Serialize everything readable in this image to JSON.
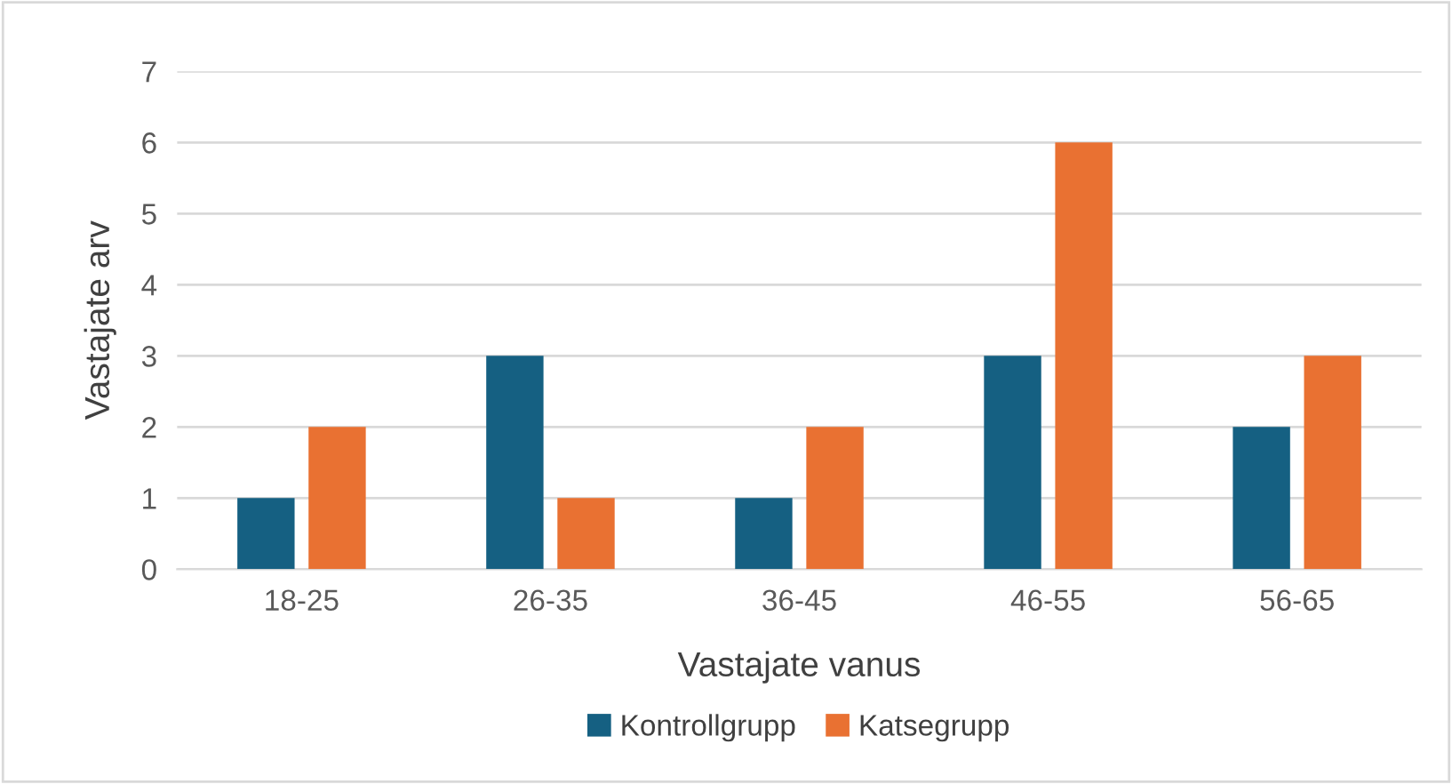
{
  "chart_data": {
    "type": "bar",
    "xlabel": "Vastajate vanus",
    "ylabel": "Vastajate arv",
    "categories": [
      "18-25",
      "26-35",
      "36-45",
      "46-55",
      "56-65"
    ],
    "series": [
      {
        "name": "Kontrollgrupp",
        "color": "#156082",
        "values": [
          1,
          3,
          1,
          3,
          2
        ]
      },
      {
        "name": "Katsegrupp",
        "color": "#e97132",
        "values": [
          2,
          1,
          2,
          6,
          3
        ]
      }
    ],
    "ylim": [
      0,
      7
    ],
    "yticks": [
      0,
      1,
      2,
      3,
      4,
      5,
      6,
      7
    ],
    "grid": "y",
    "legend": "bottom"
  }
}
